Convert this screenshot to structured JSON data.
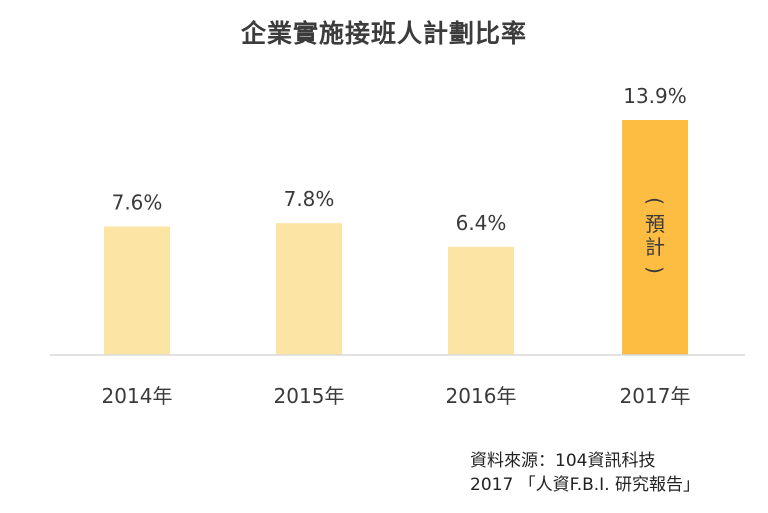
{
  "chart_data": {
    "type": "bar",
    "title": "企業實施接班人計劃比率",
    "categories": [
      "2014年",
      "2015年",
      "2016年",
      "2017年"
    ],
    "values": [
      7.6,
      7.8,
      6.4,
      13.9
    ],
    "data_labels": [
      "7.6%",
      "7.8%",
      "6.4%",
      "13.9%"
    ],
    "unit": "%",
    "highlight_index": 3,
    "highlight_annotation": [
      "(",
      "預",
      "計",
      ")"
    ],
    "colors": {
      "bar": "#FCE4A4",
      "highlight_bar": "#FDBD42",
      "axis": "#d9d9d9",
      "text": "#3a3a3a"
    },
    "ylim": [
      0,
      13.9
    ],
    "grid": false,
    "legend": "none"
  },
  "source": {
    "line1": "資料來源：104資訊科技",
    "line2": "2017 「人資F.B.I. 研究報告」"
  }
}
